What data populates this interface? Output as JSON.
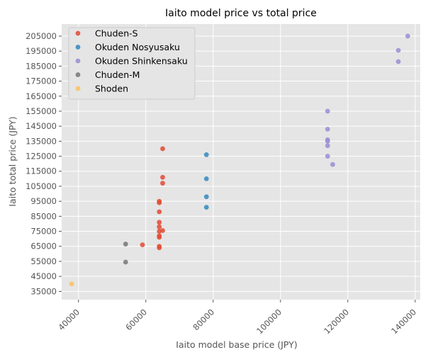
{
  "chart_data": {
    "type": "scatter",
    "title": "Iaito model price vs total price",
    "xlabel": "Iaito model base price (JPY)",
    "ylabel": "Iaito total price (JPY)",
    "xlim": [
      35000,
      141500
    ],
    "ylim": [
      29500,
      213000
    ],
    "x_ticks": [
      40000,
      60000,
      80000,
      100000,
      120000,
      140000
    ],
    "x_tick_labels": [
      "40000",
      "60000",
      "80000",
      "100000",
      "120000",
      "140000"
    ],
    "y_ticks": [
      35000,
      45000,
      55000,
      65000,
      75000,
      85000,
      95000,
      105000,
      115000,
      125000,
      135000,
      145000,
      155000,
      165000,
      175000,
      185000,
      195000,
      205000
    ],
    "y_tick_labels": [
      "35000",
      "45000",
      "55000",
      "65000",
      "75000",
      "85000",
      "95000",
      "105000",
      "115000",
      "125000",
      "135000",
      "145000",
      "155000",
      "165000",
      "175000",
      "185000",
      "195000",
      "205000"
    ],
    "grid": true,
    "legend_position": "top-left",
    "series": [
      {
        "name": "Chuden-S",
        "color": "#E24A33",
        "points": [
          [
            65000,
            130000
          ],
          [
            65000,
            111000
          ],
          [
            65000,
            107000
          ],
          [
            64000,
            95000
          ],
          [
            64000,
            94000
          ],
          [
            64000,
            88000
          ],
          [
            64000,
            81000
          ],
          [
            64000,
            78000
          ],
          [
            65000,
            75500
          ],
          [
            64000,
            75000
          ],
          [
            64000,
            72000
          ],
          [
            64000,
            71000
          ],
          [
            59000,
            66000
          ],
          [
            64000,
            65000
          ],
          [
            64000,
            64000
          ]
        ]
      },
      {
        "name": "Okuden Nosyusaku",
        "color": "#348ABD",
        "points": [
          [
            78000,
            126000
          ],
          [
            78000,
            110000
          ],
          [
            78000,
            98000
          ],
          [
            78000,
            91000
          ]
        ]
      },
      {
        "name": "Okuden Shinkensaku",
        "color": "#988ED5",
        "points": [
          [
            137800,
            205000
          ],
          [
            135000,
            195500
          ],
          [
            135000,
            188000
          ],
          [
            114000,
            155000
          ],
          [
            114000,
            143000
          ],
          [
            114000,
            136000
          ],
          [
            114000,
            135000
          ],
          [
            114000,
            132000
          ],
          [
            114000,
            125000
          ],
          [
            115500,
            119500
          ]
        ]
      },
      {
        "name": "Chuden-M",
        "color": "#777777",
        "points": [
          [
            54000,
            66500
          ],
          [
            54000,
            54500
          ]
        ]
      },
      {
        "name": "Shoden",
        "color": "#FBC15E",
        "points": [
          [
            38000,
            40000
          ]
        ]
      }
    ]
  }
}
